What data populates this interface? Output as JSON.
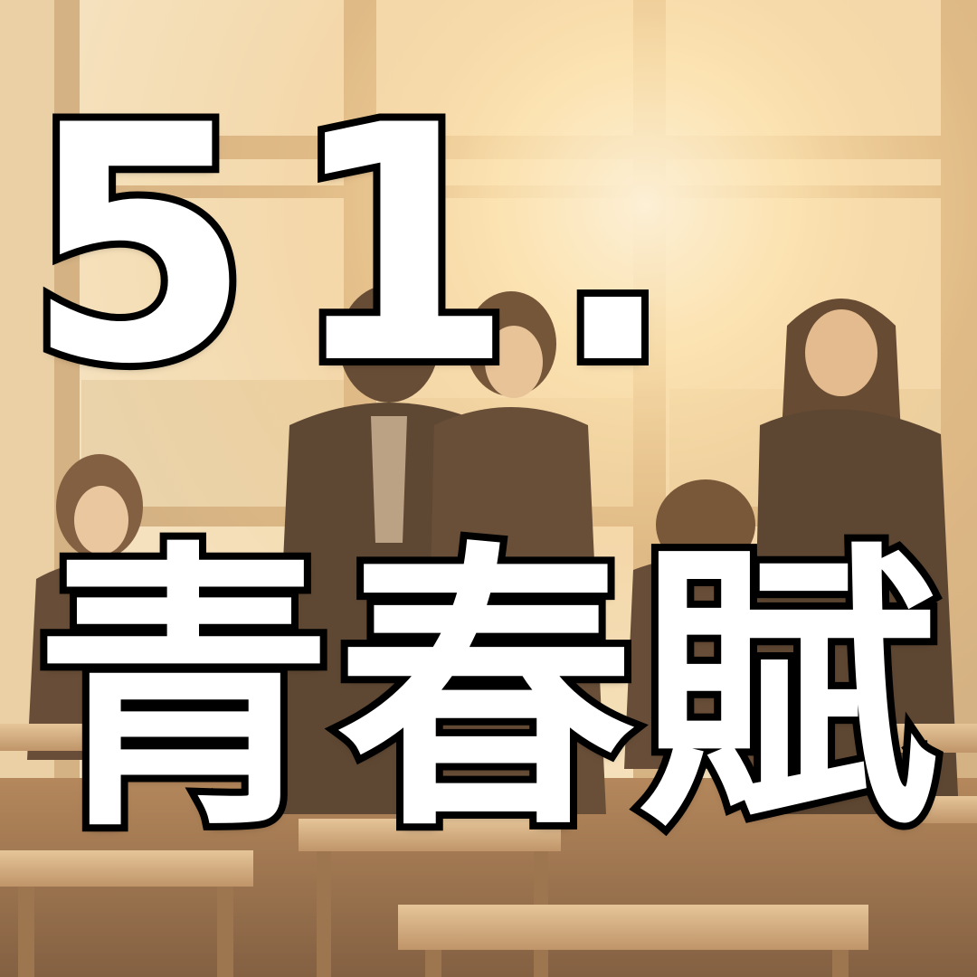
{
  "image": {
    "subject": "classroom-photo",
    "palette": {
      "light": "#f7e7c6",
      "warm": "#e6b979",
      "shadow": "#5a3a24",
      "uniform": "#3b2a20",
      "desk": "#c8a27a"
    }
  },
  "caption": {
    "number": "51.",
    "title": "青春賦",
    "fill_color": "#ffffff",
    "stroke_color": "#000000"
  }
}
